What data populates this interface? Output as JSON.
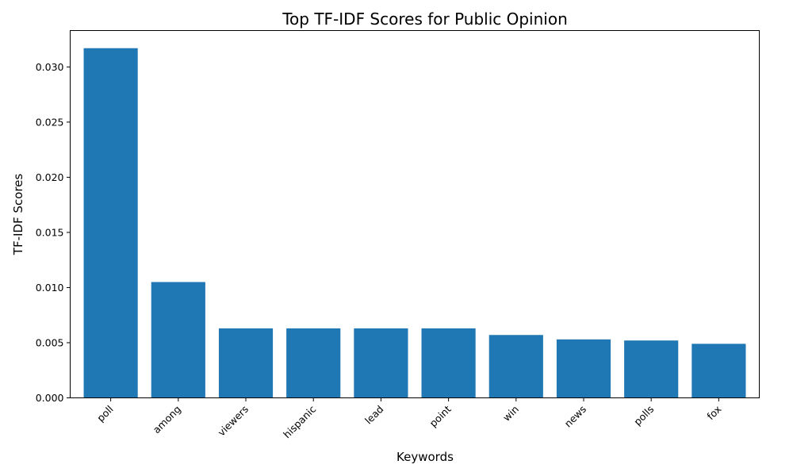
{
  "chart_data": {
    "type": "bar",
    "title": "Top TF-IDF Scores for Public Opinion",
    "xlabel": "Keywords",
    "ylabel": "TF-IDF Scores",
    "categories": [
      "poll",
      "among",
      "viewers",
      "hispanic",
      "lead",
      "point",
      "win",
      "news",
      "polls",
      "fox"
    ],
    "values": [
      0.0317,
      0.0105,
      0.0063,
      0.0063,
      0.0063,
      0.0063,
      0.0057,
      0.0053,
      0.0052,
      0.0049
    ],
    "ylim": [
      0,
      0.0333
    ],
    "yticks": [
      0.0,
      0.005,
      0.01,
      0.015,
      0.02,
      0.025,
      0.03
    ],
    "ytick_labels": [
      "0.000",
      "0.005",
      "0.010",
      "0.015",
      "0.020",
      "0.025",
      "0.030"
    ],
    "grid": false,
    "bar_color": "#1f77b4"
  }
}
